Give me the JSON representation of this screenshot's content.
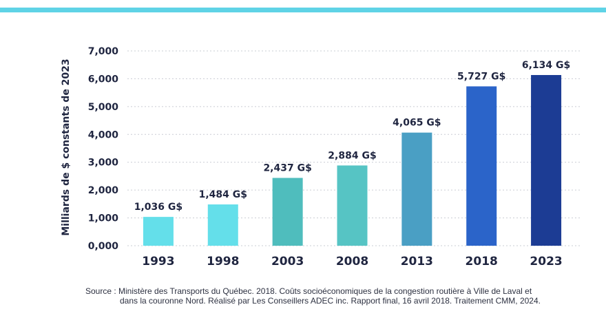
{
  "chart_data": {
    "type": "bar",
    "categories": [
      "1993",
      "1998",
      "2003",
      "2008",
      "2013",
      "2018",
      "2023"
    ],
    "values": [
      1036,
      1484,
      2437,
      2884,
      4065,
      5727,
      6134
    ],
    "data_labels": [
      "1,036 G$",
      "1,484 G$",
      "2,437 G$",
      "2,884 G$",
      "4,065 G$",
      "5,727 G$",
      "6,134 G$"
    ],
    "colors": [
      "#64dfea",
      "#64dfea",
      "#4fbdbd",
      "#56c4c4",
      "#4a9fc4",
      "#2b64c9",
      "#1c3c94"
    ],
    "ylabel": "Milliards de $ constants de 2023",
    "xlabel": "",
    "title": "",
    "ylim": [
      0,
      7000
    ],
    "yticks": [
      0,
      1000,
      2000,
      3000,
      4000,
      5000,
      6000,
      7000
    ],
    "ytick_labels": [
      "0,000",
      "1,000",
      "2,000",
      "3,000",
      "4,000",
      "5,000",
      "6,000",
      "7,000"
    ],
    "grid": "horizontal dotted",
    "legend": "none"
  },
  "source": {
    "line1": "Source : Ministère des Transports du Québec. 2018. Coûts socioéconomiques de la congestion routière à Ville de Laval et",
    "line2": "dans la couronne Nord. Réalisé par Les Conseillers ADEC inc. Rapport final, 16 avril 2018. Traitement CMM, 2024."
  }
}
